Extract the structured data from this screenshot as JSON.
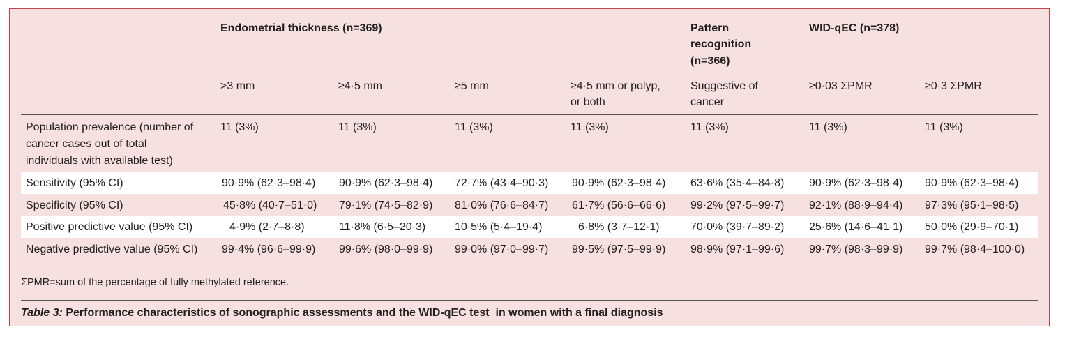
{
  "group_headers": {
    "endometrial": "Endometrial thickness (n=369)",
    "pattern_line1": "Pattern",
    "pattern_line2": "recognition",
    "pattern_line3": "(n=366)",
    "widqec": "WID-qEC (n=378)"
  },
  "sub_headers": {
    "c1": ">3 mm",
    "c2": "≥4·5 mm",
    "c3": "≥5 mm",
    "c4_line1": "≥4·5 mm or polyp,",
    "c4_line2": "or both",
    "c5_line1": "Suggestive of",
    "c5_line2": "cancer",
    "c6": "≥0·03 ΣPMR",
    "c7": "≥0·3 ΣPMR"
  },
  "rows": [
    {
      "label_lines": [
        "Population prevalence (number of",
        "cancer cases out of total",
        "individuals with available test)"
      ],
      "values": [
        "11 (3%)",
        "11 (3%)",
        "11 (3%)",
        "11 (3%)",
        "11 (3%)",
        "11 (3%)",
        "11 (3%)"
      ]
    },
    {
      "label": "Sensitivity (95% CI)",
      "values": [
        "90·9% (62·3–98·4)",
        "90·9% (62·3–98·4)",
        "72·7% (43·4–90·3)",
        "90·9% (62·3–98·4)",
        "63·6% (35·4–84·8)",
        "90·9% (62·3–98·4)",
        "90·9% (62·3–98·4)"
      ]
    },
    {
      "label": "Specificity (95% CI)",
      "values": [
        "45·8% (40·7–51·0)",
        "79·1% (74·5–82·9)",
        "81·0% (76·6–84·7)",
        "61·7% (56·6–66·6)",
        "99·2% (97·5–99·7)",
        "92·1% (88·9–94·4)",
        "97·3% (95·1–98·5)"
      ]
    },
    {
      "label": "Positive predictive value (95% CI)",
      "values": [
        "4·9% (2·7–8·8)",
        "11·8% (6·5–20·3)",
        "10·5% (5·4–19·4)",
        "6·8% (3·7–12·1)",
        "70·0% (39·7–89·2)",
        "25·6% (14·6–41·1)",
        "50·0% (29·9–70·1)"
      ]
    },
    {
      "label": "Negative predictive value (95% CI)",
      "values": [
        "99·4% (96·6–99·9)",
        "99·6% (98·0–99·9)",
        "99·0% (97·0–99·7)",
        "99·5% (97·5–99·9)",
        "98·9% (97·1–99·6)",
        "99·7% (98·3–99·9)",
        "99·7% (98·4–100·0)"
      ]
    }
  ],
  "footnote": "ΣPMR=sum of the percentage of fully methylated reference.",
  "caption": {
    "label": "Table 3:",
    "text": " Performance characteristics of sonographic assessments and the WID-qEC test  in women with a final diagnosis"
  },
  "colors": {
    "panel_background": "#f7e0e0",
    "panel_border": "#c0474f",
    "band": "#ffffff",
    "text": "#231f20"
  }
}
